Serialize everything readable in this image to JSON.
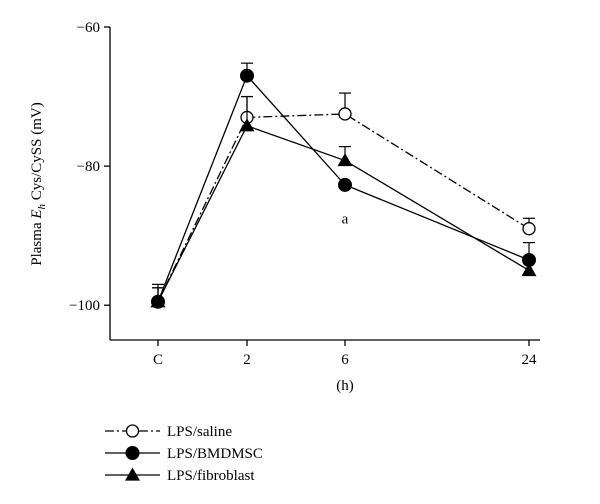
{
  "chart_data": {
    "type": "line",
    "title": "",
    "xlabel": "(h)",
    "ylabel_prefix": "Plasma ",
    "ylabel_italic": "E",
    "ylabel_sub": "h",
    "ylabel_suffix": " Cys/CySS (mV)",
    "categories": [
      "C",
      "2",
      "6",
      "24"
    ],
    "x": [
      0,
      2,
      6,
      24
    ],
    "ylim": [
      -105,
      -60
    ],
    "yticks": [
      -100,
      -80,
      -60
    ],
    "ytick_labels": [
      "−100",
      "−80",
      "−60"
    ],
    "grid": false,
    "legend_position": "bottom-left",
    "series": [
      {
        "name": "LPS/saline",
        "marker": "circle-open",
        "line_style": "dash-dot",
        "values": [
          -99.5,
          -73,
          -72.5,
          -89
        ],
        "errors": [
          2.0,
          3.0,
          3.0,
          1.5
        ]
      },
      {
        "name": "LPS/BMDMSC",
        "marker": "circle-filled",
        "line_style": "solid",
        "values": [
          -99.5,
          -67,
          -82.7,
          -93.5
        ],
        "errors": [
          2.5,
          1.8,
          0,
          2.5
        ]
      },
      {
        "name": "LPS/fibroblast",
        "marker": "triangle-filled",
        "line_style": "solid",
        "values": [
          -99.5,
          -74.2,
          -79.2,
          -95
        ],
        "errors": [
          2.0,
          4.2,
          2.0,
          0
        ]
      }
    ],
    "annotations": [
      {
        "text": "a",
        "x": 6,
        "y": -86.5
      }
    ]
  },
  "colors": {
    "line": "#000000",
    "background": "#ffffff"
  }
}
